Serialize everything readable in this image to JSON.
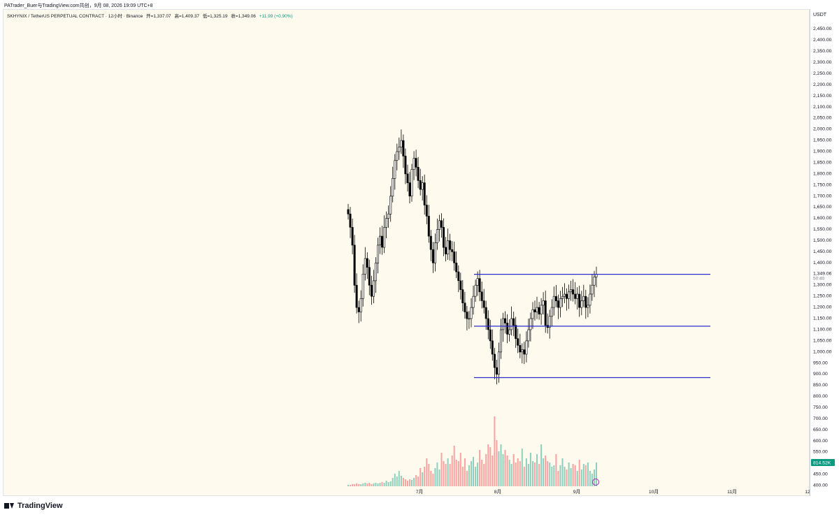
{
  "header": {
    "publish_line": "PATrader_Buer与TradingView.com共创，9月 08, 2026 19:09 UTC+8"
  },
  "legend": {
    "symbol": "SKHYNIX / TetherUS PERPETUAL CONTRACT · 12小时 · Binance",
    "open": "开=1,337.07",
    "high": "高=1,409.37",
    "low": "低=1,325.19",
    "close": "收=1,349.06",
    "change": "+11.99 (+0.90%)"
  },
  "axis": {
    "currency": "USDT",
    "price_ticks": [
      "2,450.00",
      "2,400.00",
      "2,350.00",
      "2,300.00",
      "2,250.00",
      "2,200.00",
      "2,150.00",
      "2,100.00",
      "2,050.00",
      "2,000.00",
      "1,950.00",
      "1,900.00",
      "1,850.00",
      "1,800.00",
      "1,750.00",
      "1,700.00",
      "1,650.00",
      "1,600.00",
      "1,550.00",
      "1,500.00",
      "1,450.00",
      "1,400.00",
      "1,300.00",
      "1,250.00",
      "1,200.00",
      "1,150.00",
      "1,100.00",
      "1,050.00",
      "1,000.00",
      "950.00",
      "900.00",
      "850.00",
      "800.00",
      "750.00",
      "700.00",
      "650.00",
      "600.00",
      "550.00",
      "500.00",
      "450.00",
      "400.00"
    ],
    "last_price_label": "1,349.06",
    "countdown_label": "50:40",
    "volume_label": "814.52K",
    "time_ticks": [
      "7月",
      "8月",
      "9月",
      "10月",
      "11月",
      "12"
    ]
  },
  "chart_data": {
    "type": "candlestick",
    "title": "SKHYNIX / TetherUS PERPETUAL CONTRACT · 12小时 · Binance",
    "ylim": [
      375,
      2490
    ],
    "last_price": 1349.06,
    "horizontal_lines": [
      1349.06,
      1116,
      885
    ],
    "line_color": "#2a2bcc",
    "up_color": "#089981",
    "down_color": "#f23645",
    "candle_color": "#000000",
    "close_path": [
      1620,
      1560,
      1480,
      1300,
      1200,
      1180,
      1240,
      1350,
      1420,
      1380,
      1300,
      1250,
      1320,
      1400,
      1480,
      1520,
      1470,
      1560,
      1600,
      1620,
      1700,
      1780,
      1860,
      1900,
      1920,
      1950,
      1880,
      1800,
      1760,
      1700,
      1820,
      1870,
      1830,
      1770,
      1730,
      1760,
      1660,
      1610,
      1520,
      1460,
      1400,
      1490,
      1550,
      1590,
      1560,
      1470,
      1440,
      1500,
      1460,
      1450,
      1400,
      1360,
      1320,
      1280,
      1220,
      1180,
      1150,
      1150,
      1200,
      1250,
      1300,
      1330,
      1270,
      1230,
      1200,
      1150,
      1100,
      1050,
      990,
      930,
      900,
      1000,
      1100,
      1150,
      1130,
      1080,
      1100,
      1150,
      1120,
      1060,
      1030,
      1000,
      1010,
      990,
      1050,
      1100,
      1150,
      1190,
      1180,
      1200,
      1170,
      1210,
      1230,
      1120,
      1110,
      1160,
      1200,
      1250,
      1230,
      1200,
      1240,
      1250,
      1260,
      1240,
      1270,
      1280,
      1260,
      1240,
      1260,
      1200,
      1230,
      1250,
      1200,
      1210,
      1260,
      1300,
      1337,
      1349
    ],
    "volume_rel": [
      0.02,
      0.02,
      0.03,
      0.03,
      0.04,
      0.03,
      0.03,
      0.04,
      0.05,
      0.04,
      0.05,
      0.03,
      0.04,
      0.05,
      0.04,
      0.05,
      0.06,
      0.05,
      0.08,
      0.06,
      0.07,
      0.12,
      0.18,
      0.14,
      0.22,
      0.15,
      0.12,
      0.1,
      0.08,
      0.1,
      0.09,
      0.12,
      0.16,
      0.14,
      0.26,
      0.2,
      0.28,
      0.4,
      0.32,
      0.22,
      0.18,
      0.26,
      0.34,
      0.24,
      0.48,
      0.36,
      0.32,
      0.4,
      0.32,
      0.44,
      0.58,
      0.38,
      0.36,
      0.48,
      0.28,
      0.4,
      0.22,
      0.3,
      0.36,
      0.42,
      0.28,
      0.34,
      0.52,
      0.38,
      0.32,
      0.46,
      0.6,
      0.56,
      0.44,
      1.0,
      0.66,
      0.5,
      0.6,
      0.46,
      0.52,
      0.44,
      0.38,
      0.32,
      0.46,
      0.34,
      0.4,
      0.36,
      0.54,
      0.28,
      0.4,
      0.32,
      0.48,
      0.36,
      0.34,
      0.46,
      0.32,
      0.6,
      0.4,
      0.44,
      0.36,
      0.34,
      0.28,
      0.3,
      0.46,
      0.22,
      0.3,
      0.4,
      0.28,
      0.24,
      0.34,
      0.26,
      0.32,
      0.3,
      0.22,
      0.38,
      0.24,
      0.32,
      0.3,
      0.34,
      0.22,
      0.18,
      0.24,
      0.34
    ]
  }
}
